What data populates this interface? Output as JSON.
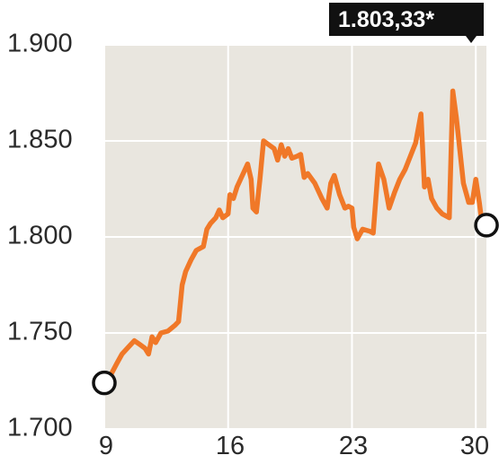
{
  "chart_data": {
    "type": "line",
    "title": "",
    "xlabel": "",
    "ylabel": "",
    "x_tick_labels": [
      "9",
      "16",
      "23",
      "30"
    ],
    "x_ticks": [
      9,
      16,
      23,
      30
    ],
    "xlim": [
      9,
      30.6
    ],
    "y_tick_labels": [
      "1.900",
      "1.850",
      "1.800",
      "1.750",
      "1.700"
    ],
    "y_ticks": [
      1900,
      1850,
      1800,
      1750,
      1700
    ],
    "ylim": [
      1700,
      1900
    ],
    "grid": true,
    "series": [
      {
        "color": "#f07828",
        "points": [
          [
            9.0,
            1724
          ],
          [
            9.3,
            1727
          ],
          [
            9.7,
            1734
          ],
          [
            10.0,
            1739
          ],
          [
            10.4,
            1743
          ],
          [
            10.7,
            1746
          ],
          [
            11.0,
            1744
          ],
          [
            11.3,
            1742
          ],
          [
            11.5,
            1739
          ],
          [
            11.7,
            1748
          ],
          [
            11.9,
            1745
          ],
          [
            12.2,
            1750
          ],
          [
            12.6,
            1751
          ],
          [
            13.0,
            1754
          ],
          [
            13.2,
            1756
          ],
          [
            13.4,
            1775
          ],
          [
            13.6,
            1782
          ],
          [
            13.9,
            1788
          ],
          [
            14.2,
            1793
          ],
          [
            14.6,
            1795
          ],
          [
            14.8,
            1804
          ],
          [
            15.0,
            1807
          ],
          [
            15.3,
            1810
          ],
          [
            15.5,
            1814
          ],
          [
            15.7,
            1810
          ],
          [
            16.0,
            1812
          ],
          [
            16.1,
            1822
          ],
          [
            16.3,
            1820
          ],
          [
            16.5,
            1826
          ],
          [
            16.8,
            1832
          ],
          [
            17.1,
            1838
          ],
          [
            17.3,
            1830
          ],
          [
            17.4,
            1815
          ],
          [
            17.6,
            1813
          ],
          [
            17.8,
            1830
          ],
          [
            18.0,
            1850
          ],
          [
            18.3,
            1848
          ],
          [
            18.6,
            1846
          ],
          [
            18.8,
            1840
          ],
          [
            19.0,
            1848
          ],
          [
            19.2,
            1842
          ],
          [
            19.4,
            1846
          ],
          [
            19.6,
            1841
          ],
          [
            19.9,
            1842
          ],
          [
            20.1,
            1843
          ],
          [
            20.3,
            1831
          ],
          [
            20.5,
            1833
          ],
          [
            20.9,
            1828
          ],
          [
            21.3,
            1820
          ],
          [
            21.6,
            1815
          ],
          [
            21.8,
            1828
          ],
          [
            22.0,
            1832
          ],
          [
            22.3,
            1822
          ],
          [
            22.6,
            1815
          ],
          [
            22.8,
            1816
          ],
          [
            23.0,
            1815
          ],
          [
            23.1,
            1805
          ],
          [
            23.3,
            1799
          ],
          [
            23.6,
            1804
          ],
          [
            24.0,
            1803
          ],
          [
            24.2,
            1802
          ],
          [
            24.5,
            1838
          ],
          [
            24.8,
            1830
          ],
          [
            25.1,
            1815
          ],
          [
            25.4,
            1823
          ],
          [
            25.7,
            1830
          ],
          [
            26.0,
            1835
          ],
          [
            26.3,
            1842
          ],
          [
            26.6,
            1849
          ],
          [
            26.9,
            1864
          ],
          [
            27.1,
            1826
          ],
          [
            27.3,
            1830
          ],
          [
            27.5,
            1820
          ],
          [
            27.8,
            1815
          ],
          [
            28.1,
            1812
          ],
          [
            28.5,
            1810
          ],
          [
            28.7,
            1876
          ],
          [
            28.9,
            1862
          ],
          [
            29.1,
            1845
          ],
          [
            29.3,
            1828
          ],
          [
            29.6,
            1818
          ],
          [
            29.8,
            1818
          ],
          [
            30.0,
            1830
          ],
          [
            30.2,
            1818
          ],
          [
            30.4,
            1803.33
          ]
        ]
      }
    ],
    "start_marker_value": 1724,
    "end_marker_value": 1803.33,
    "callout_label": "1.803,33*",
    "background_color": "#e9e6df",
    "grid_color": "#ffffff",
    "line_color": "#f07828",
    "callout_color": "#111111"
  }
}
